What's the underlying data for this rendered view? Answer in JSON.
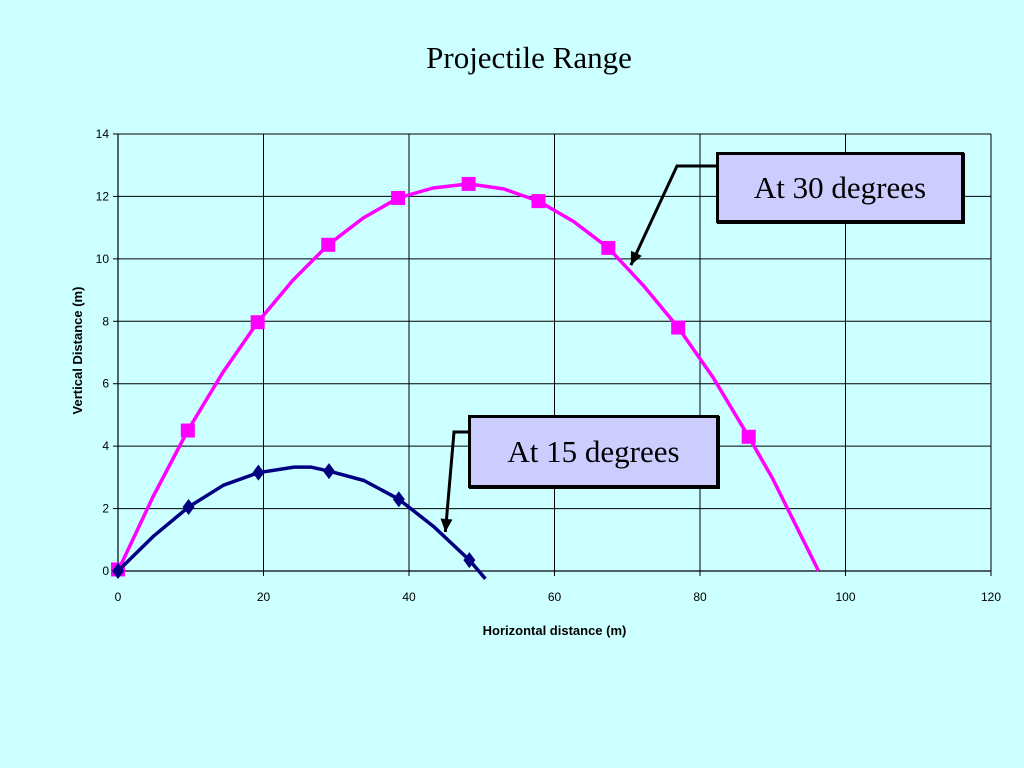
{
  "title": "Projectile Range",
  "callouts": {
    "deg30": "At 30 degrees",
    "deg15": "At 15 degrees"
  },
  "chart_data": {
    "type": "line",
    "title": "Projectile Range",
    "xlabel": "Horizontal distance (m)",
    "ylabel": "Vertical Distance (m)",
    "xlim": [
      0,
      120
    ],
    "ylim": [
      0,
      14
    ],
    "xticks": [
      0,
      20,
      40,
      60,
      80,
      100,
      120
    ],
    "yticks": [
      0,
      2,
      4,
      6,
      8,
      10,
      12,
      14
    ],
    "grid": true,
    "series": [
      {
        "color": "#ff00ff",
        "marker": "square",
        "points": [
          [
            0,
            0.05
          ],
          [
            9.6,
            4.5
          ],
          [
            19.2,
            7.97
          ],
          [
            28.9,
            10.45
          ],
          [
            38.5,
            11.95
          ],
          [
            48.2,
            12.4
          ],
          [
            57.8,
            11.85
          ],
          [
            67.4,
            10.35
          ],
          [
            77.0,
            7.8
          ],
          [
            86.7,
            4.3
          ]
        ],
        "curve": [
          [
            0,
            0
          ],
          [
            4.8,
            2.37
          ],
          [
            9.6,
            4.5
          ],
          [
            14.4,
            6.36
          ],
          [
            19.2,
            7.97
          ],
          [
            24.1,
            9.33
          ],
          [
            28.9,
            10.45
          ],
          [
            33.7,
            11.31
          ],
          [
            38.5,
            11.95
          ],
          [
            43.3,
            12.27
          ],
          [
            48.2,
            12.4
          ],
          [
            53.0,
            12.24
          ],
          [
            57.8,
            11.85
          ],
          [
            62.6,
            11.2
          ],
          [
            67.4,
            10.35
          ],
          [
            72.2,
            9.15
          ],
          [
            77.0,
            7.8
          ],
          [
            81.8,
            6.2
          ],
          [
            86.7,
            4.3
          ],
          [
            89.9,
            3.0
          ],
          [
            93.1,
            1.5
          ],
          [
            96.3,
            0
          ]
        ]
      },
      {
        "color": "#000080",
        "marker": "diamond",
        "points": [
          [
            0,
            0
          ],
          [
            9.7,
            2.05
          ],
          [
            19.3,
            3.15
          ],
          [
            29.0,
            3.2
          ],
          [
            38.6,
            2.3
          ],
          [
            48.3,
            0.35
          ]
        ],
        "curve": [
          [
            0,
            0
          ],
          [
            4.8,
            1.1
          ],
          [
            9.7,
            2.05
          ],
          [
            14.5,
            2.75
          ],
          [
            19.3,
            3.15
          ],
          [
            24.2,
            3.33
          ],
          [
            26.5,
            3.33
          ],
          [
            29.0,
            3.2
          ],
          [
            33.8,
            2.9
          ],
          [
            38.6,
            2.3
          ],
          [
            43.5,
            1.4
          ],
          [
            48.3,
            0.35
          ],
          [
            50.5,
            -0.25
          ]
        ]
      }
    ],
    "annotations": [
      {
        "text": "At 30 degrees",
        "arrow_to": [
          70.5,
          9.8
        ]
      },
      {
        "text": "At 15 degrees",
        "arrow_to": [
          45.0,
          1.25
        ]
      }
    ]
  }
}
